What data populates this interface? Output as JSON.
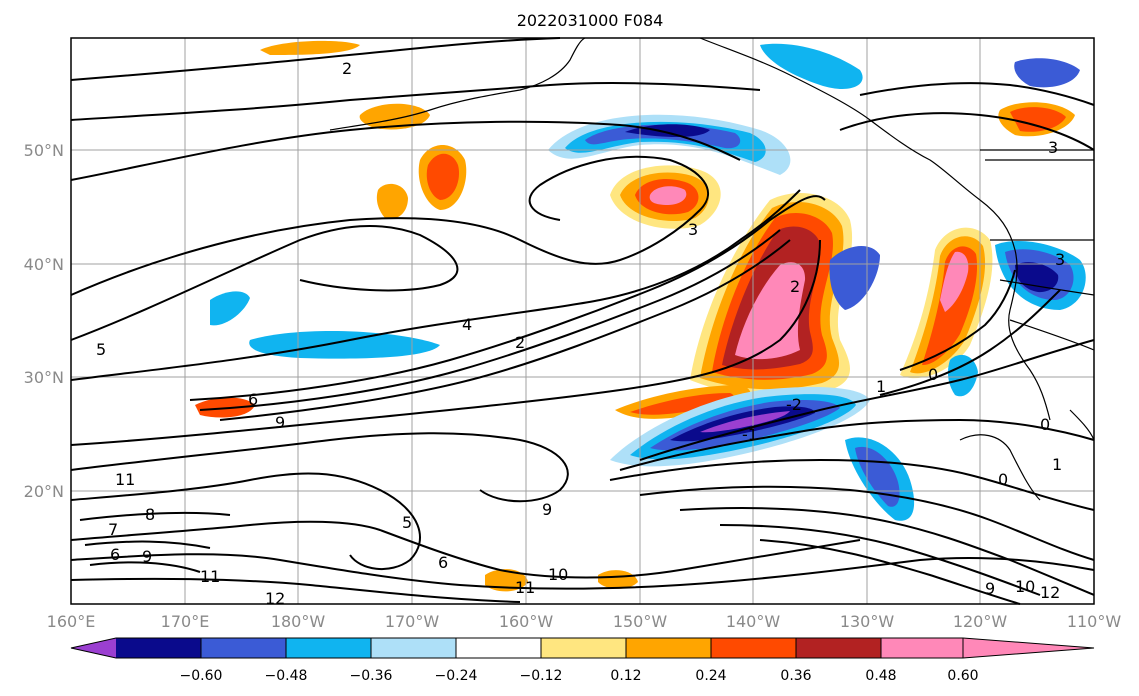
{
  "title": "2022031000 F084",
  "lon_ticks": [
    "160°E",
    "170°E",
    "180°W",
    "170°W",
    "160°W",
    "150°W",
    "140°W",
    "130°W",
    "120°W",
    "110°W"
  ],
  "lat_ticks": [
    "50°N",
    "40°N",
    "30°N",
    "20°N"
  ],
  "colorbar": {
    "labels": [
      "−0.60",
      "−0.48",
      "−0.36",
      "−0.24",
      "−0.12",
      "0.12",
      "0.24",
      "0.36",
      "0.48",
      "0.60"
    ],
    "colors": [
      "#9b3fd1",
      "#0a0a8c",
      "#3b5bd6",
      "#10b4f0",
      "#aee0f8",
      "#ffffff",
      "#ffe680",
      "#ffa500",
      "#ff4a00",
      "#b22222",
      "#ff88b8"
    ]
  },
  "contour_labels": [
    "2",
    "5",
    "6",
    "7",
    "8",
    "9",
    "10",
    "11",
    "12",
    "4",
    "3",
    "1",
    "0",
    "-1",
    "-2"
  ],
  "colors": {
    "coast": "#000000",
    "grid": "#a0a0a0"
  }
}
